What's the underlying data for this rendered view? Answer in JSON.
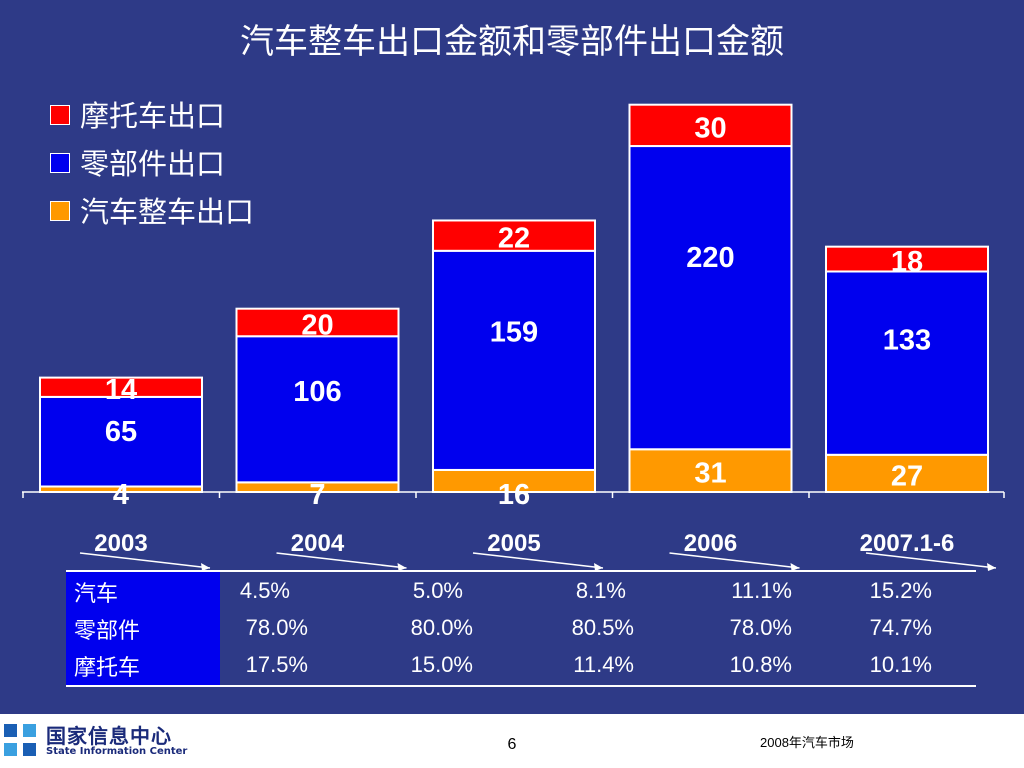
{
  "slide_title": "汽车整车出口金额和零部件出口金额",
  "colors": {
    "background": "#2E3A87",
    "motorcycle": "#FF0000",
    "parts": "#0000EE",
    "vehicle": "#FF9900",
    "text": "#FFFFFF"
  },
  "chart_data": {
    "type": "bar",
    "stacked": true,
    "categories": [
      "2003",
      "2004",
      "2005",
      "2006",
      "2007.1-6"
    ],
    "series": [
      {
        "name": "汽车整车出口",
        "color": "#FF9900",
        "values": [
          4,
          7,
          16,
          31,
          27
        ]
      },
      {
        "name": "零部件出口",
        "color": "#0000EE",
        "values": [
          65,
          106,
          159,
          220,
          133
        ]
      },
      {
        "name": "摩托车出口",
        "color": "#FF0000",
        "values": [
          14,
          20,
          22,
          30,
          18
        ]
      }
    ],
    "legend_order": [
      "摩托车出口",
      "零部件出口",
      "汽车整车出口"
    ],
    "legend_position": "top-left",
    "grid": false,
    "data_labels": true
  },
  "share_table": {
    "rows": [
      {
        "label": "汽车",
        "values": [
          "4.5%",
          "5.0%",
          "8.1%",
          "11.1%",
          "15.2%"
        ]
      },
      {
        "label": "零部件",
        "values": [
          "78.0%",
          "80.0%",
          "80.5%",
          "78.0%",
          "74.7%"
        ]
      },
      {
        "label": "摩托车",
        "values": [
          "17.5%",
          "15.0%",
          "11.4%",
          "10.8%",
          "10.1%"
        ]
      }
    ]
  },
  "footer": {
    "logo_cn": "国家信息中心",
    "logo_en": "State Information Center",
    "page_number": "6",
    "right_text": "2008年汽车市场"
  }
}
